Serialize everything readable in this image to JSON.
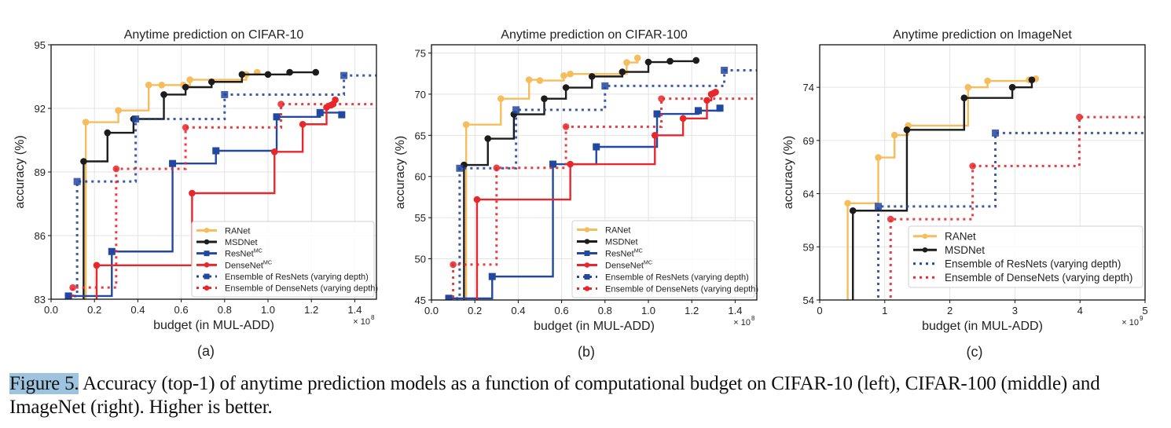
{
  "caption": {
    "label": "Figure 5.",
    "text": " Accuracy (top-1) of anytime prediction models as a function of computational budget on CIFAR-10 (left), CIFAR-100 (middle) and ImageNet (right). Higher is better."
  },
  "colors": {
    "RANet": "#f5bd5c",
    "MSDNet": "#1c1c1c",
    "ResNet": "#2348a0",
    "DenseNet": "#e8272c"
  },
  "chart_data": [
    {
      "type": "line",
      "subplot_label": "(a)",
      "title": "Anytime prediction on CIFAR-10",
      "xlabel": "budget (in MUL-ADD)",
      "ylabel": "accuracy (%)",
      "x_multiplier": "× 10",
      "x_exponent": "8",
      "xlim": [
        0,
        1.5
      ],
      "ylim": [
        83,
        95
      ],
      "xticks": [
        0.0,
        0.2,
        0.4,
        0.6,
        0.8,
        1.0,
        1.2,
        1.4
      ],
      "xtick_labels": [
        "0.0",
        "0.2",
        "0.4",
        "0.6",
        "0.8",
        "1.0",
        "1.2",
        "1.4"
      ],
      "yticks": [
        83,
        86,
        89,
        92,
        95
      ],
      "ytick_labels": [
        "83",
        "86",
        "89",
        "92",
        "95"
      ],
      "grid": true,
      "legend_position": "lower-right",
      "series": [
        {
          "name": "RANet",
          "sup": "",
          "color_key": "RANet",
          "style": "solid",
          "marker": "circle",
          "x": [
            0.16,
            0.31,
            0.45,
            0.51,
            0.61,
            0.64,
            0.9,
            0.95
          ],
          "y": [
            91.35,
            91.9,
            93.1,
            93.1,
            93.1,
            93.35,
            93.6,
            93.7
          ]
        },
        {
          "name": "MSDNet",
          "sup": "",
          "color_key": "MSDNet",
          "style": "solid",
          "marker": "circle",
          "x": [
            0.15,
            0.26,
            0.38,
            0.52,
            0.62,
            0.74,
            0.88,
            1.0,
            1.1,
            1.22
          ],
          "y": [
            89.5,
            90.85,
            91.5,
            92.65,
            93.0,
            93.25,
            93.6,
            93.6,
            93.7,
            93.7
          ]
        },
        {
          "name": "ResNet",
          "sup": "MC",
          "color_key": "ResNet",
          "style": "solid",
          "marker": "square",
          "x": [
            0.08,
            0.28,
            0.56,
            0.76,
            1.04,
            1.24,
            1.34
          ],
          "y": [
            83.15,
            85.25,
            89.4,
            90.0,
            91.6,
            91.8,
            91.7
          ]
        },
        {
          "name": "DenseNet",
          "sup": "MC",
          "color_key": "DenseNet",
          "style": "solid",
          "marker": "circle",
          "x": [
            0.21,
            0.65,
            1.03,
            1.16,
            1.27,
            1.29,
            1.3,
            1.31
          ],
          "y": [
            84.6,
            88.0,
            89.95,
            91.25,
            92.05,
            92.15,
            92.2,
            92.4
          ]
        },
        {
          "name": "Ensemble of ResNets (varying depth)",
          "sup": "",
          "color_key": "ResNet",
          "style": "dotted",
          "marker": "square",
          "extend_to_edge": true,
          "x": [
            0.08,
            0.12,
            0.39,
            0.8,
            1.35
          ],
          "y": [
            83.15,
            88.55,
            91.5,
            92.65,
            93.55
          ]
        },
        {
          "name": "Ensemble of DenseNets (varying depth)",
          "sup": "",
          "color_key": "DenseNet",
          "style": "dotted",
          "marker": "circle",
          "extend_to_edge": true,
          "x": [
            0.1,
            0.3,
            0.62,
            1.06
          ],
          "y": [
            83.55,
            89.15,
            91.1,
            92.2
          ]
        }
      ]
    },
    {
      "type": "line",
      "subplot_label": "(b)",
      "title": "Anytime prediction on CIFAR-100",
      "xlabel": "budget (in MUL-ADD)",
      "ylabel": "accuracy (%)",
      "x_multiplier": "× 10",
      "x_exponent": "8",
      "xlim": [
        0,
        1.5
      ],
      "ylim": [
        45,
        76
      ],
      "xticks": [
        0.0,
        0.2,
        0.4,
        0.6,
        0.8,
        1.0,
        1.2,
        1.4
      ],
      "xtick_labels": [
        "0.0",
        "0.2",
        "0.4",
        "0.6",
        "0.8",
        "1.0",
        "1.2",
        "1.4"
      ],
      "yticks": [
        45,
        50,
        55,
        60,
        65,
        70,
        75
      ],
      "ytick_labels": [
        "45",
        "50",
        "55",
        "60",
        "65",
        "70",
        "75"
      ],
      "grid": true,
      "legend_position": "lower-right",
      "series": [
        {
          "name": "RANet",
          "sup": "",
          "color_key": "RANet",
          "style": "solid",
          "marker": "circle",
          "x": [
            0.16,
            0.32,
            0.45,
            0.5,
            0.61,
            0.64,
            0.9,
            0.95
          ],
          "y": [
            66.3,
            69.45,
            71.75,
            71.65,
            72.25,
            72.45,
            73.85,
            74.4
          ]
        },
        {
          "name": "MSDNet",
          "sup": "",
          "color_key": "MSDNet",
          "style": "solid",
          "marker": "circle",
          "x": [
            0.15,
            0.26,
            0.38,
            0.52,
            0.62,
            0.74,
            0.88,
            1.0,
            1.1,
            1.22
          ],
          "y": [
            61.4,
            64.6,
            67.55,
            69.45,
            70.8,
            72.15,
            72.7,
            73.9,
            74.0,
            74.1
          ]
        },
        {
          "name": "ResNet",
          "sup": "MC",
          "color_key": "ResNet",
          "style": "solid",
          "marker": "square",
          "x": [
            0.08,
            0.28,
            0.56,
            0.76,
            1.04,
            1.23,
            1.33
          ],
          "y": [
            45.2,
            47.85,
            61.5,
            63.6,
            67.6,
            68.0,
            68.3
          ]
        },
        {
          "name": "DenseNet",
          "sup": "MC",
          "color_key": "DenseNet",
          "style": "solid",
          "marker": "circle",
          "x": [
            0.21,
            0.64,
            1.03,
            1.16,
            1.27,
            1.29,
            1.3,
            1.31
          ],
          "y": [
            57.2,
            61.5,
            65.0,
            67.05,
            69.25,
            70.0,
            70.1,
            70.25
          ]
        },
        {
          "name": "Ensemble of ResNets (varying depth)",
          "sup": "",
          "color_key": "ResNet",
          "style": "dotted",
          "marker": "square",
          "extend_to_edge": true,
          "x": [
            0.08,
            0.13,
            0.39,
            0.8,
            1.35
          ],
          "y": [
            45.2,
            61.0,
            68.1,
            71.0,
            72.9
          ]
        },
        {
          "name": "Ensemble of DenseNets (varying depth)",
          "sup": "",
          "color_key": "DenseNet",
          "style": "dotted",
          "marker": "circle",
          "extend_to_edge": true,
          "x": [
            0.1,
            0.3,
            0.62,
            1.06
          ],
          "y": [
            49.3,
            61.05,
            66.05,
            69.45
          ]
        }
      ]
    },
    {
      "type": "line",
      "subplot_label": "(c)",
      "title": "Anytime prediction on ImageNet",
      "xlabel": "budget (in MUL-ADD)",
      "ylabel": "accuracy (%)",
      "x_multiplier": "× 10",
      "x_exponent": "9",
      "xlim": [
        0,
        5
      ],
      "ylim": [
        54,
        78
      ],
      "xticks": [
        0,
        1,
        2,
        3,
        4,
        5
      ],
      "xtick_labels": [
        "0",
        "1",
        "2",
        "3",
        "4",
        "5"
      ],
      "yticks": [
        54,
        59,
        64,
        69,
        74
      ],
      "ytick_labels": [
        "54",
        "59",
        "64",
        "69",
        "74"
      ],
      "grid": true,
      "legend_position": "lower-right",
      "series": [
        {
          "name": "RANet",
          "sup": "",
          "color_key": "RANet",
          "style": "solid",
          "marker": "circle",
          "x": [
            0.43,
            0.9,
            1.15,
            1.36,
            2.28,
            2.58,
            3.22,
            3.32
          ],
          "y": [
            63.1,
            67.4,
            69.5,
            70.4,
            74.0,
            74.6,
            74.7,
            74.8
          ]
        },
        {
          "name": "MSDNet",
          "sup": "",
          "color_key": "MSDNet",
          "style": "solid",
          "marker": "circle",
          "x": [
            0.51,
            1.34,
            2.22,
            2.96,
            3.26
          ],
          "y": [
            62.4,
            70.0,
            73.0,
            74.0,
            74.7
          ]
        },
        {
          "name": "Ensemble of ResNets (varying depth)",
          "sup": "",
          "color_key": "ResNet",
          "style": "dotted",
          "marker": "square",
          "extend_to_edge": true,
          "x": [
            0.9,
            2.7
          ],
          "y": [
            62.8,
            69.7
          ]
        },
        {
          "name": "Ensemble of DenseNets (varying depth)",
          "sup": "",
          "color_key": "DenseNet",
          "style": "dotted",
          "marker": "circle",
          "extend_to_edge": true,
          "x": [
            1.09,
            2.35,
            3.99
          ],
          "y": [
            61.6,
            66.6,
            71.2
          ]
        }
      ]
    }
  ]
}
